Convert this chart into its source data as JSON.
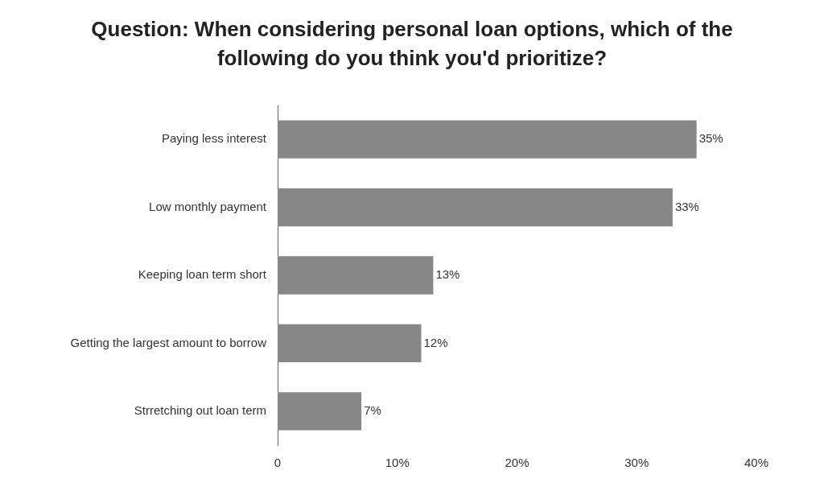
{
  "chart_data": {
    "type": "bar",
    "orientation": "horizontal",
    "title": "Question: When considering personal loan options, which of the following do you think you'd prioritize?",
    "categories": [
      "Paying less interest",
      "Low monthly payment",
      "Keeping loan term short",
      "Getting the largest amount to borrow",
      "Strretching out loan term"
    ],
    "values": [
      35,
      33,
      13,
      12,
      7
    ],
    "value_labels": [
      "35%",
      "33%",
      "13%",
      "12%",
      "7%"
    ],
    "color": "#878787",
    "xlim": [
      0,
      40
    ],
    "xticks": [
      0,
      {
        "value": 10,
        "label": "10%"
      },
      {
        "value": 20,
        "label": "20%"
      },
      {
        "value": 30,
        "label": "30%"
      },
      {
        "value": 40,
        "label": "40%"
      }
    ],
    "grid": false,
    "legend": false
  }
}
